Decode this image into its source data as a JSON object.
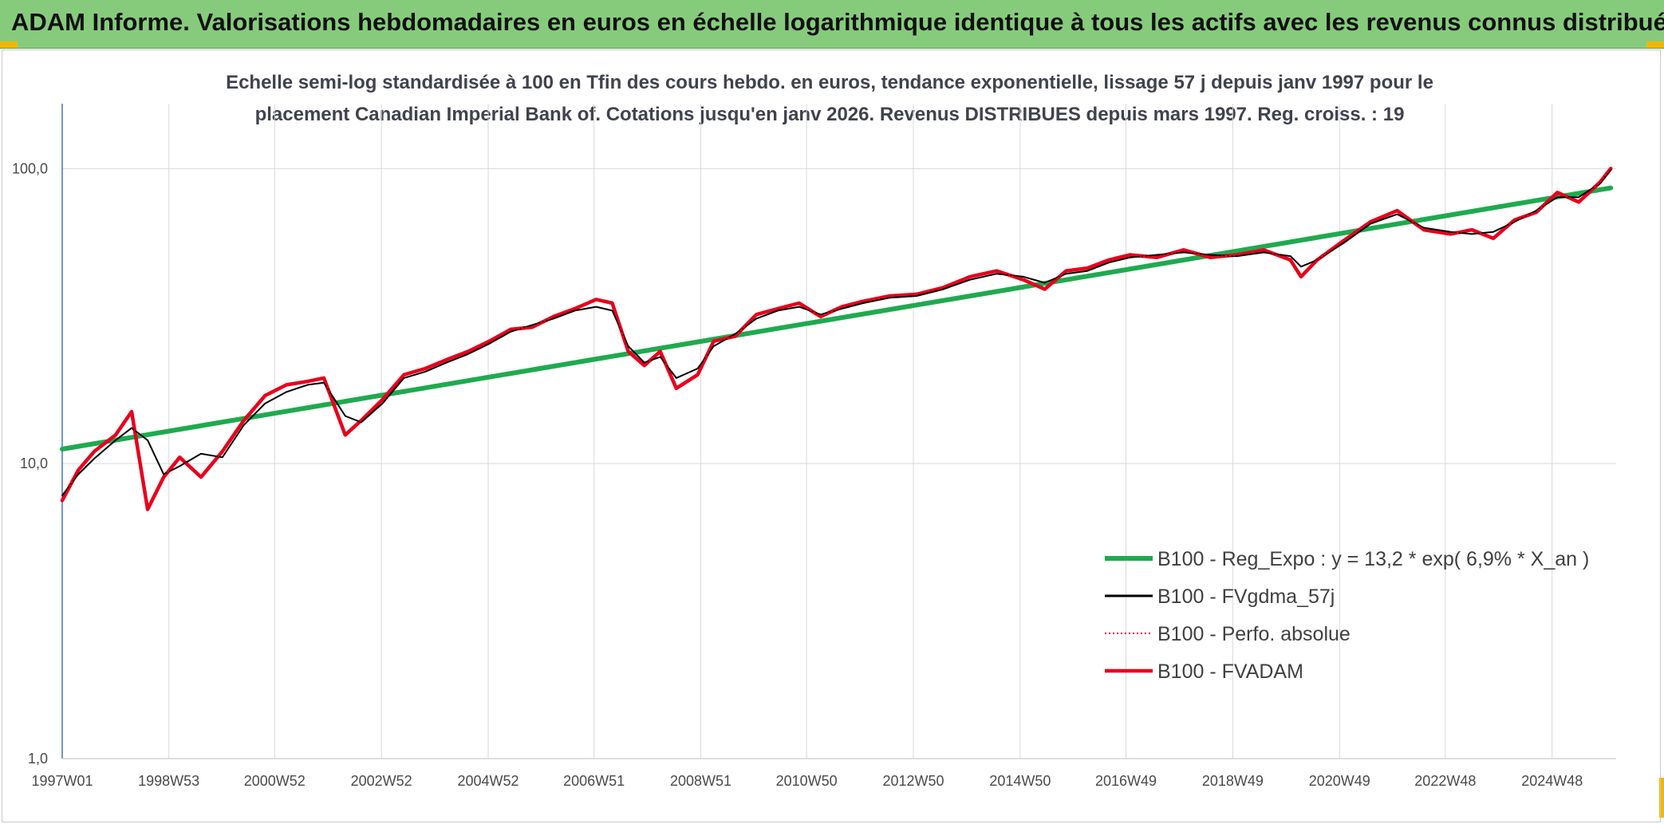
{
  "header": {
    "title": "ADAM Informe. Valorisations hebdomadaires en euros en échelle logarithmique identique à tous les actifs avec les revenus connus distribués",
    "accent": "#86cb7c",
    "corner_color": "#f2b705"
  },
  "chart_data": {
    "type": "line",
    "title_line1": "Echelle semi-log standardisée à 100 en Tfin des cours hebdo. en euros, tendance exponentielle, lissage 57 j depuis janv 1997 pour le",
    "title_line2": "placement Canadian Imperial Bank of. Cotations jusqu'en janv 2026. Revenus DISTRIBUES depuis mars 1997. Reg. croiss. : 19",
    "y_scale": "log",
    "ylim": [
      1,
      200
    ],
    "y_ticks": [
      "1,0",
      "10,0",
      "100,0"
    ],
    "xlim": [
      1997.0,
      2026.1
    ],
    "x_ticks": [
      "1997W01",
      "1998W53",
      "2000W52",
      "2002W52",
      "2004W52",
      "2006W51",
      "2008W51",
      "2010W50",
      "2012W50",
      "2014W50",
      "2016W49",
      "2018W49",
      "2020W49",
      "2022W48",
      "2024W48"
    ],
    "grid": "vertical and horizontal",
    "legend_position": "lower-right",
    "series": [
      {
        "name": "B100 - Reg_Expo : y = 13,2 * exp( 6,9% *  X_an )",
        "color": "#1faa4f",
        "style": "solid-thick",
        "x": [
          1997.0,
          2026.0
        ],
        "y": [
          11.2,
          86
        ]
      },
      {
        "name": "B100 - FVgdma_57j",
        "color": "#000000",
        "style": "solid",
        "x": [
          1997.0,
          1997.3,
          1997.6,
          1998.0,
          1998.3,
          1998.6,
          1998.9,
          1999.2,
          1999.6,
          2000.0,
          2000.4,
          2000.8,
          2001.2,
          2001.6,
          2001.9,
          2002.3,
          2002.6,
          2003.0,
          2003.4,
          2003.8,
          2004.2,
          2004.6,
          2005.0,
          2005.4,
          2005.8,
          2006.2,
          2006.6,
          2007.0,
          2007.3,
          2007.6,
          2007.9,
          2008.2,
          2008.5,
          2008.9,
          2009.2,
          2009.6,
          2010.0,
          2010.4,
          2010.8,
          2011.2,
          2011.6,
          2012.0,
          2012.5,
          2013.0,
          2013.5,
          2014.0,
          2014.5,
          2015.0,
          2015.4,
          2015.8,
          2016.2,
          2016.6,
          2017.0,
          2017.5,
          2018.0,
          2018.5,
          2019.0,
          2019.5,
          2020.0,
          2020.2,
          2020.5,
          2021.0,
          2021.5,
          2022.0,
          2022.5,
          2023.0,
          2023.4,
          2023.8,
          2024.2,
          2024.6,
          2025.0,
          2025.4,
          2025.8,
          2026.0
        ],
        "y": [
          7.8,
          9.2,
          10.4,
          12.0,
          13.2,
          12.0,
          9.2,
          9.8,
          10.8,
          10.5,
          13.5,
          16.0,
          17.5,
          18.5,
          18.8,
          14.5,
          13.8,
          16.0,
          19.5,
          20.5,
          22.0,
          23.5,
          25.5,
          28.0,
          29.5,
          31.0,
          33.0,
          34.0,
          33.0,
          25.0,
          22.0,
          23.0,
          19.5,
          21.0,
          25.0,
          27.5,
          31.0,
          33.0,
          34.0,
          32.0,
          33.5,
          35.0,
          36.5,
          37.0,
          39.0,
          42.0,
          44.0,
          43.0,
          41.0,
          44.0,
          45.0,
          48.0,
          50.0,
          51.0,
          52.0,
          51.0,
          50.5,
          52.0,
          50.5,
          46.5,
          49.0,
          56.0,
          65.0,
          70.0,
          63.0,
          61.0,
          60.0,
          61.0,
          66.0,
          72.0,
          80.0,
          80.0,
          89.0,
          99.0
        ]
      },
      {
        "name": "B100 - Perfo. absolue",
        "color": "#e8001c",
        "style": "dotted",
        "x": [
          1997.0,
          1997.3,
          1997.6,
          1998.0,
          1998.3,
          1998.6,
          1998.9,
          1999.2,
          1999.6,
          2000.0,
          2000.4,
          2000.8,
          2001.2,
          2001.6,
          2001.9,
          2002.3,
          2002.6,
          2003.0,
          2003.4,
          2003.8,
          2004.2,
          2004.6,
          2005.0,
          2005.4,
          2005.8,
          2006.2,
          2006.6,
          2007.0,
          2007.3,
          2007.6,
          2007.9,
          2008.2,
          2008.5,
          2008.9,
          2009.2,
          2009.6,
          2010.0,
          2010.4,
          2010.8,
          2011.2,
          2011.6,
          2012.0,
          2012.5,
          2013.0,
          2013.5,
          2014.0,
          2014.5,
          2015.0,
          2015.4,
          2015.8,
          2016.2,
          2016.6,
          2017.0,
          2017.5,
          2018.0,
          2018.5,
          2019.0,
          2019.5,
          2020.0,
          2020.2,
          2020.5,
          2021.0,
          2021.5,
          2022.0,
          2022.5,
          2023.0,
          2023.4,
          2023.8,
          2024.2,
          2024.6,
          2025.0,
          2025.4,
          2025.8,
          2026.0
        ],
        "y": [
          7.5,
          9.5,
          11.0,
          12.5,
          15.0,
          7.0,
          9.0,
          10.5,
          9.0,
          11.0,
          14.0,
          17.0,
          18.5,
          19.0,
          19.5,
          12.5,
          14.0,
          16.5,
          20.0,
          21.0,
          22.5,
          24.0,
          26.0,
          28.5,
          29.0,
          31.5,
          33.5,
          36.0,
          35.0,
          24.0,
          21.5,
          24.0,
          18.0,
          20.0,
          26.0,
          27.0,
          32.0,
          33.5,
          35.0,
          31.5,
          34.0,
          35.5,
          37.0,
          37.5,
          39.5,
          43.0,
          45.0,
          42.0,
          39.0,
          45.0,
          46.0,
          49.0,
          51.0,
          50.0,
          53.0,
          50.0,
          51.0,
          53.0,
          49.0,
          43.0,
          49.0,
          57.0,
          66.0,
          72.0,
          62.0,
          60.0,
          62.0,
          58.0,
          67.0,
          71.0,
          83.0,
          77.0,
          90.0,
          100.0
        ]
      },
      {
        "name": "B100 - FVADAM",
        "color": "#e8001c",
        "style": "solid-thick",
        "x": [
          1997.0,
          1997.3,
          1997.6,
          1998.0,
          1998.3,
          1998.6,
          1998.9,
          1999.2,
          1999.6,
          2000.0,
          2000.4,
          2000.8,
          2001.2,
          2001.6,
          2001.9,
          2002.3,
          2002.6,
          2003.0,
          2003.4,
          2003.8,
          2004.2,
          2004.6,
          2005.0,
          2005.4,
          2005.8,
          2006.2,
          2006.6,
          2007.0,
          2007.3,
          2007.6,
          2007.9,
          2008.2,
          2008.5,
          2008.9,
          2009.2,
          2009.6,
          2010.0,
          2010.4,
          2010.8,
          2011.2,
          2011.6,
          2012.0,
          2012.5,
          2013.0,
          2013.5,
          2014.0,
          2014.5,
          2015.0,
          2015.4,
          2015.8,
          2016.2,
          2016.6,
          2017.0,
          2017.5,
          2018.0,
          2018.5,
          2019.0,
          2019.5,
          2020.0,
          2020.2,
          2020.5,
          2021.0,
          2021.5,
          2022.0,
          2022.5,
          2023.0,
          2023.4,
          2023.8,
          2024.2,
          2024.6,
          2025.0,
          2025.4,
          2025.8,
          2026.0
        ],
        "y": [
          7.5,
          9.5,
          11.0,
          12.5,
          15.0,
          7.0,
          9.0,
          10.5,
          9.0,
          11.0,
          14.0,
          17.0,
          18.5,
          19.0,
          19.5,
          12.5,
          14.0,
          16.5,
          20.0,
          21.0,
          22.5,
          24.0,
          26.0,
          28.5,
          29.0,
          31.5,
          33.5,
          36.0,
          35.0,
          24.0,
          21.5,
          24.0,
          18.0,
          20.0,
          26.0,
          27.0,
          32.0,
          33.5,
          35.0,
          31.5,
          34.0,
          35.5,
          37.0,
          37.5,
          39.5,
          43.0,
          45.0,
          42.0,
          39.0,
          45.0,
          46.0,
          49.0,
          51.0,
          50.0,
          53.0,
          50.0,
          51.0,
          53.0,
          49.0,
          43.0,
          49.0,
          57.0,
          66.0,
          72.0,
          62.0,
          60.0,
          62.0,
          58.0,
          67.0,
          71.0,
          83.0,
          77.0,
          90.0,
          100.0
        ]
      }
    ]
  }
}
